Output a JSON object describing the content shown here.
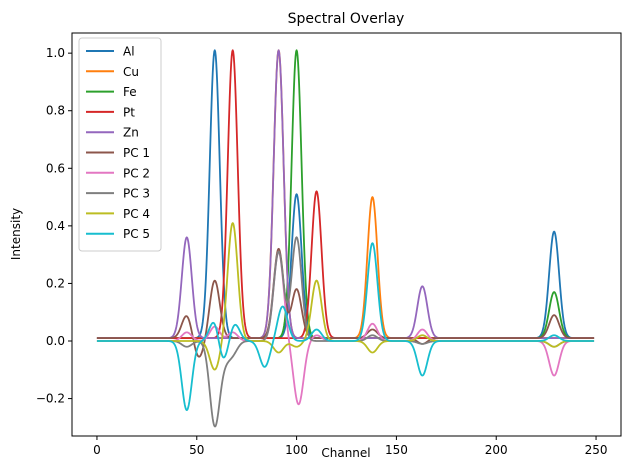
{
  "chart_data": {
    "type": "line",
    "title": "Spectral Overlay",
    "xlabel": "Channel",
    "ylabel": "Intensity",
    "xlim": [
      -12.5,
      262.5
    ],
    "ylim": [
      -0.33,
      1.07
    ],
    "xticks": [
      0,
      50,
      100,
      150,
      200,
      250
    ],
    "yticks": [
      -0.2,
      0.0,
      0.2,
      0.4,
      0.6,
      0.8,
      1.0
    ],
    "ytick_labels": [
      "−0.2",
      "0.0",
      "0.2",
      "0.4",
      "0.6",
      "0.8",
      "1.0"
    ],
    "legend_position": "top-left",
    "grid": false,
    "x_range": [
      0,
      249
    ],
    "series": [
      {
        "name": "Al",
        "color": "#1f77b4",
        "baseline": 0.01,
        "peaks": [
          [
            59,
            1.0,
            2.5
          ],
          [
            100,
            0.5,
            2.5
          ],
          [
            229,
            0.37,
            2.5
          ]
        ]
      },
      {
        "name": "Cu",
        "color": "#ff7f0e",
        "baseline": 0.01,
        "peaks": [
          [
            91,
            1.0,
            2.5
          ],
          [
            138,
            0.49,
            2.5
          ]
        ]
      },
      {
        "name": "Fe",
        "color": "#2ca02c",
        "baseline": 0.01,
        "peaks": [
          [
            100,
            1.0,
            2.5
          ],
          [
            229,
            0.16,
            2.5
          ]
        ]
      },
      {
        "name": "Pt",
        "color": "#d62728",
        "baseline": 0.01,
        "peaks": [
          [
            68,
            1.0,
            2.5
          ],
          [
            110,
            0.51,
            2.5
          ]
        ]
      },
      {
        "name": "Zn",
        "color": "#9467bd",
        "baseline": 0.01,
        "peaks": [
          [
            45,
            0.35,
            2.5
          ],
          [
            91,
            1.0,
            2.5
          ],
          [
            163,
            0.18,
            2.5
          ]
        ]
      },
      {
        "name": "PC 1",
        "color": "#8c564b",
        "baseline": 0.01,
        "peaks": [
          [
            45,
            0.08,
            2.5
          ],
          [
            51,
            -0.07,
            2.5
          ],
          [
            59,
            0.2,
            2.5
          ],
          [
            91,
            0.31,
            2.5
          ],
          [
            100,
            0.17,
            2.5
          ],
          [
            138,
            0.03,
            2.5
          ],
          [
            163,
            -0.02,
            2.5
          ],
          [
            229,
            0.08,
            2.5
          ]
        ]
      },
      {
        "name": "PC 2",
        "color": "#e377c2",
        "baseline": 0.0,
        "peaks": [
          [
            45,
            0.03,
            2.5
          ],
          [
            59,
            0.05,
            2.5
          ],
          [
            68,
            0.03,
            2.5
          ],
          [
            91,
            0.31,
            2.5
          ],
          [
            101,
            -0.22,
            2.5
          ],
          [
            110,
            0.02,
            2.5
          ],
          [
            138,
            0.06,
            2.5
          ],
          [
            163,
            0.04,
            2.5
          ],
          [
            229,
            -0.12,
            2.5
          ]
        ]
      },
      {
        "name": "PC 3",
        "color": "#7f7f7f",
        "baseline": 0.0,
        "peaks": [
          [
            45,
            -0.02,
            2.5
          ],
          [
            59,
            -0.29,
            2.5
          ],
          [
            64,
            -0.05,
            2.5
          ],
          [
            68,
            -0.04,
            2.5
          ],
          [
            91,
            0.31,
            2.5
          ],
          [
            100,
            0.36,
            2.5
          ],
          [
            138,
            0.02,
            2.5
          ],
          [
            163,
            -0.01,
            2.5
          ],
          [
            229,
            -0.02,
            2.5
          ]
        ]
      },
      {
        "name": "PC 4",
        "color": "#bcbd22",
        "baseline": 0.0,
        "peaks": [
          [
            45,
            0.0,
            2.5
          ],
          [
            59,
            -0.1,
            2.5
          ],
          [
            68,
            0.41,
            2.5
          ],
          [
            91,
            -0.04,
            2.5
          ],
          [
            100,
            -0.02,
            2.5
          ],
          [
            110,
            0.21,
            2.5
          ],
          [
            138,
            -0.04,
            2.5
          ],
          [
            163,
            0.02,
            2.5
          ],
          [
            229,
            -0.02,
            2.5
          ]
        ]
      },
      {
        "name": "PC 5",
        "color": "#17becf",
        "baseline": 0.0,
        "peaks": [
          [
            45,
            -0.24,
            2.5
          ],
          [
            59,
            0.08,
            2.5
          ],
          [
            63,
            -0.08,
            2.5
          ],
          [
            69,
            0.06,
            2.5
          ],
          [
            84,
            -0.09,
            2.5
          ],
          [
            93,
            0.12,
            2.5
          ],
          [
            110,
            0.04,
            2.5
          ],
          [
            138,
            0.34,
            2.5
          ],
          [
            163,
            -0.12,
            2.5
          ],
          [
            229,
            0.02,
            2.5
          ]
        ]
      }
    ]
  }
}
